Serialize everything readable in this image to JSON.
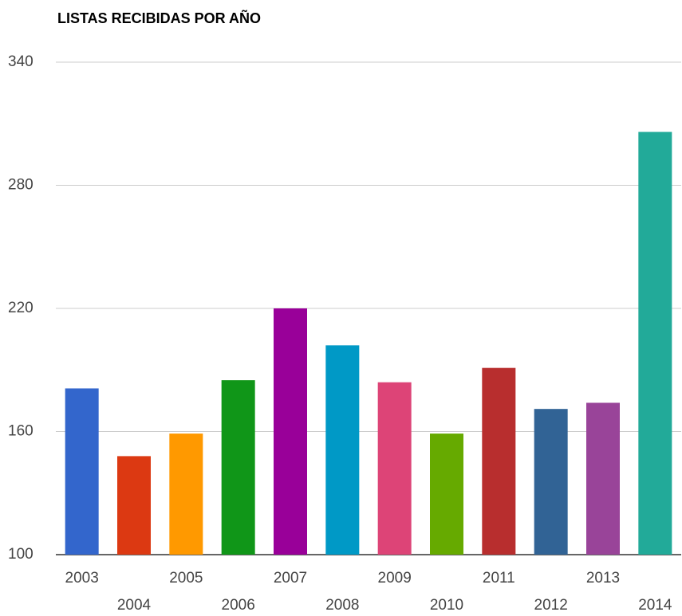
{
  "chart_data": {
    "type": "bar",
    "title": "LISTAS RECIBIDAS POR AÑO",
    "categories": [
      "2003",
      "2004",
      "2005",
      "2006",
      "2007",
      "2008",
      "2009",
      "2010",
      "2011",
      "2012",
      "2013",
      "2014"
    ],
    "values": [
      181,
      148,
      159,
      185,
      220,
      202,
      184,
      159,
      191,
      171,
      174,
      306
    ],
    "colors": [
      "#3366cc",
      "#dc3912",
      "#ff9900",
      "#109618",
      "#990099",
      "#0099c6",
      "#dd4477",
      "#66aa00",
      "#b82e2e",
      "#316395",
      "#994499",
      "#22aa99"
    ],
    "ylim": [
      100,
      340
    ],
    "yticks": [
      100,
      160,
      220,
      280,
      340
    ],
    "grid": true
  }
}
